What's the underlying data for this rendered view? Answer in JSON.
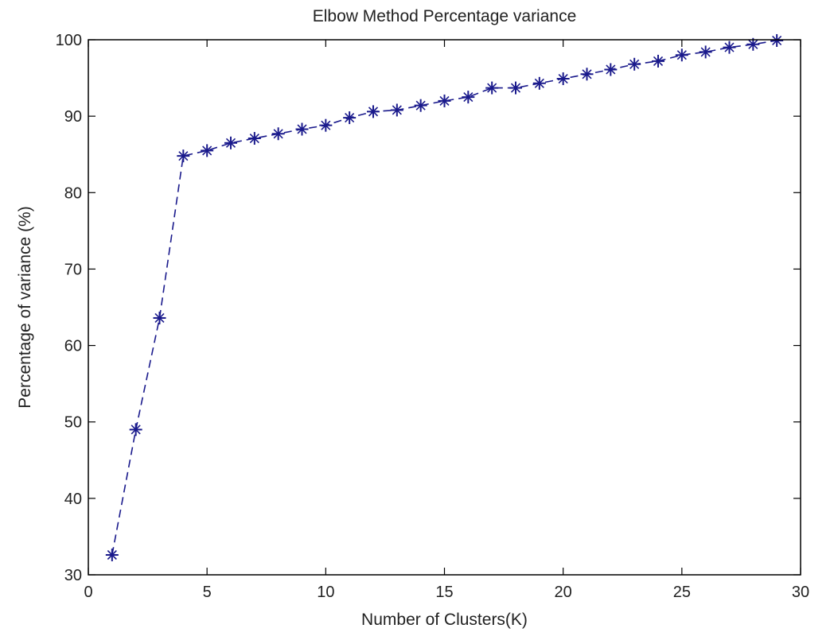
{
  "chart_data": {
    "type": "line",
    "title": "Elbow Method Percentage variance",
    "xlabel": "Number of Clusters(K)",
    "ylabel": "Percentage of variance (%)",
    "xlim": [
      0,
      30
    ],
    "ylim": [
      30,
      100
    ],
    "x_ticks": [
      0,
      5,
      10,
      15,
      20,
      25,
      30
    ],
    "y_ticks": [
      30,
      40,
      50,
      60,
      70,
      80,
      90,
      100
    ],
    "grid": false,
    "series": [
      {
        "line_style": "dashed",
        "marker": "star",
        "color": "#1a1a8c",
        "x": [
          1,
          2,
          3,
          4,
          5,
          6,
          7,
          8,
          9,
          10,
          11,
          12,
          13,
          14,
          15,
          16,
          17,
          18,
          19,
          20,
          21,
          22,
          23,
          24,
          25,
          26,
          27,
          28,
          29
        ],
        "y": [
          32.6,
          49.0,
          63.6,
          84.8,
          85.5,
          86.5,
          87.1,
          87.7,
          88.3,
          88.8,
          89.8,
          90.6,
          90.8,
          91.4,
          92.0,
          92.5,
          93.7,
          93.7,
          94.3,
          94.9,
          95.5,
          96.1,
          96.8,
          97.2,
          98.0,
          98.4,
          99.0,
          99.4,
          99.9
        ]
      }
    ]
  }
}
